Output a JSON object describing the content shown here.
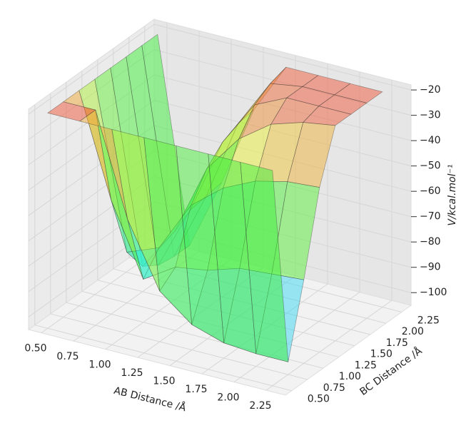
{
  "chart_data": {
    "type": "surface3d",
    "xlabel": "AB Distance /Å",
    "ylabel": "BC Distance /Å",
    "zlabel": "V/kcal.mol⁻¹",
    "x": [
      0.5,
      0.75,
      1.0,
      1.25,
      1.5,
      1.75,
      2.0,
      2.25
    ],
    "y": [
      0.5,
      0.75,
      1.0,
      1.25,
      1.5,
      1.75,
      2.0,
      2.25
    ],
    "z": [
      [
        -20,
        -20,
        -20,
        -20,
        -20,
        -20,
        -20,
        -20
      ],
      [
        -20,
        -20,
        -60,
        -85,
        -95,
        -99,
        -100,
        -100
      ],
      [
        -20,
        -60,
        -88,
        -80,
        -78,
        -74,
        -73,
        -72
      ],
      [
        -20,
        -85,
        -80,
        -60,
        -50,
        -44,
        -41,
        -40
      ],
      [
        -20,
        -95,
        -78,
        -50,
        -35,
        -26,
        -22,
        -20
      ],
      [
        -20,
        -99,
        -74,
        -44,
        -26,
        -20,
        -20,
        -20
      ],
      [
        -20,
        -100,
        -73,
        -41,
        -22,
        -20,
        -20,
        -20
      ],
      [
        -20,
        -100,
        -72,
        -40,
        -20,
        -20,
        -20,
        -20
      ]
    ],
    "xlim": [
      0.4,
      2.4
    ],
    "ylim": [
      0.4,
      2.4
    ],
    "zlim": [
      -105,
      -18
    ],
    "xticks": [
      {
        "value": 0.5,
        "label": "0.50"
      },
      {
        "value": 0.75,
        "label": "0.75"
      },
      {
        "value": 1.0,
        "label": "1.00"
      },
      {
        "value": 1.25,
        "label": "1.25"
      },
      {
        "value": 1.5,
        "label": "1.50"
      },
      {
        "value": 1.75,
        "label": "1.75"
      },
      {
        "value": 2.0,
        "label": "2.00"
      },
      {
        "value": 2.25,
        "label": "2.25"
      }
    ],
    "yticks": [
      {
        "value": 0.5,
        "label": "0.50"
      },
      {
        "value": 0.75,
        "label": "0.75"
      },
      {
        "value": 1.0,
        "label": "1.00"
      },
      {
        "value": 1.25,
        "label": "1.25"
      },
      {
        "value": 1.5,
        "label": "1.50"
      },
      {
        "value": 1.75,
        "label": "1.75"
      },
      {
        "value": 2.0,
        "label": "2.00"
      },
      {
        "value": 2.25,
        "label": "2.25"
      }
    ],
    "zticks": [
      {
        "value": -20,
        "label": "−20"
      },
      {
        "value": -30,
        "label": "−30"
      },
      {
        "value": -40,
        "label": "−40"
      },
      {
        "value": -50,
        "label": "−50"
      },
      {
        "value": -60,
        "label": "−60"
      },
      {
        "value": -70,
        "label": "−70"
      },
      {
        "value": -80,
        "label": "−80"
      },
      {
        "value": -90,
        "label": "−90"
      },
      {
        "value": -100,
        "label": "−100"
      }
    ],
    "grid": true
  }
}
